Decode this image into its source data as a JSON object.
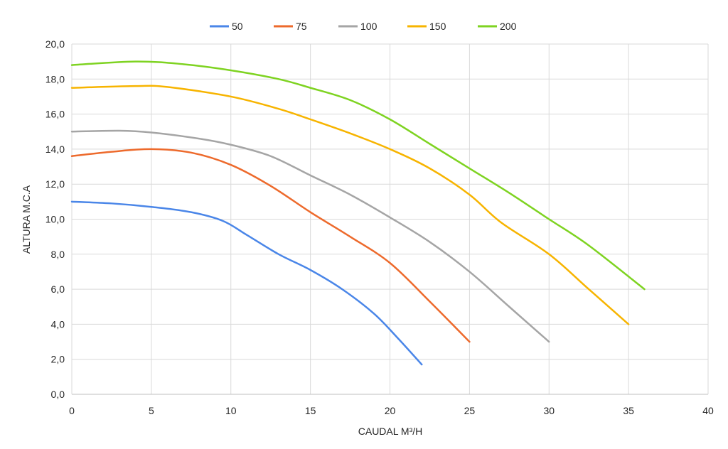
{
  "chart_data": {
    "type": "line",
    "xlabel": "CAUDAL M³/H",
    "ylabel": "ALTURA M.C.A",
    "xlim": [
      0,
      40
    ],
    "ylim": [
      0,
      20
    ],
    "xticks": [
      "0",
      "5",
      "10",
      "15",
      "20",
      "25",
      "30",
      "35",
      "40"
    ],
    "yticks": [
      "0,0",
      "2,0",
      "4,0",
      "6,0",
      "8,0",
      "10,0",
      "12,0",
      "14,0",
      "16,0",
      "18,0",
      "20,0"
    ],
    "grid": true,
    "legend_position": "top",
    "series": [
      {
        "name": "50",
        "color": "#4a86e8",
        "points": [
          [
            0,
            11.0
          ],
          [
            2.5,
            10.9
          ],
          [
            5,
            10.7
          ],
          [
            7.5,
            10.4
          ],
          [
            9.5,
            9.9
          ],
          [
            11,
            9.1
          ],
          [
            13,
            8.0
          ],
          [
            15,
            7.1
          ],
          [
            17,
            6.0
          ],
          [
            19,
            4.6
          ],
          [
            20.5,
            3.2
          ],
          [
            22,
            1.7
          ]
        ]
      },
      {
        "name": "75",
        "color": "#ed6a2c",
        "points": [
          [
            0,
            13.6
          ],
          [
            2.5,
            13.85
          ],
          [
            5,
            14.0
          ],
          [
            7.5,
            13.8
          ],
          [
            10,
            13.1
          ],
          [
            12.5,
            11.9
          ],
          [
            15,
            10.4
          ],
          [
            17.5,
            9.0
          ],
          [
            20,
            7.5
          ],
          [
            22.5,
            5.3
          ],
          [
            25,
            3.0
          ]
        ]
      },
      {
        "name": "100",
        "color": "#a5a5a5",
        "points": [
          [
            0,
            15.0
          ],
          [
            3,
            15.05
          ],
          [
            5,
            14.95
          ],
          [
            8,
            14.6
          ],
          [
            10,
            14.25
          ],
          [
            12.5,
            13.6
          ],
          [
            15,
            12.5
          ],
          [
            17.5,
            11.4
          ],
          [
            20,
            10.1
          ],
          [
            22.5,
            8.7
          ],
          [
            25,
            7.0
          ],
          [
            27.5,
            5.0
          ],
          [
            30,
            3.0
          ]
        ]
      },
      {
        "name": "150",
        "color": "#f7b400",
        "points": [
          [
            0,
            17.5
          ],
          [
            4,
            17.6
          ],
          [
            6,
            17.55
          ],
          [
            10,
            17.0
          ],
          [
            13,
            16.3
          ],
          [
            15,
            15.7
          ],
          [
            17.5,
            14.9
          ],
          [
            20,
            14.0
          ],
          [
            22.5,
            12.9
          ],
          [
            25,
            11.4
          ],
          [
            27,
            9.8
          ],
          [
            30,
            8.0
          ],
          [
            32.5,
            6.0
          ],
          [
            35,
            4.0
          ]
        ]
      },
      {
        "name": "200",
        "color": "#7ed321",
        "points": [
          [
            0,
            18.8
          ],
          [
            4,
            19.0
          ],
          [
            7,
            18.85
          ],
          [
            10,
            18.5
          ],
          [
            13,
            18.0
          ],
          [
            15,
            17.5
          ],
          [
            17.5,
            16.8
          ],
          [
            20,
            15.7
          ],
          [
            22.5,
            14.3
          ],
          [
            25,
            12.9
          ],
          [
            27.5,
            11.5
          ],
          [
            30,
            10.0
          ],
          [
            32.5,
            8.5
          ],
          [
            36,
            6.0
          ]
        ]
      }
    ]
  }
}
